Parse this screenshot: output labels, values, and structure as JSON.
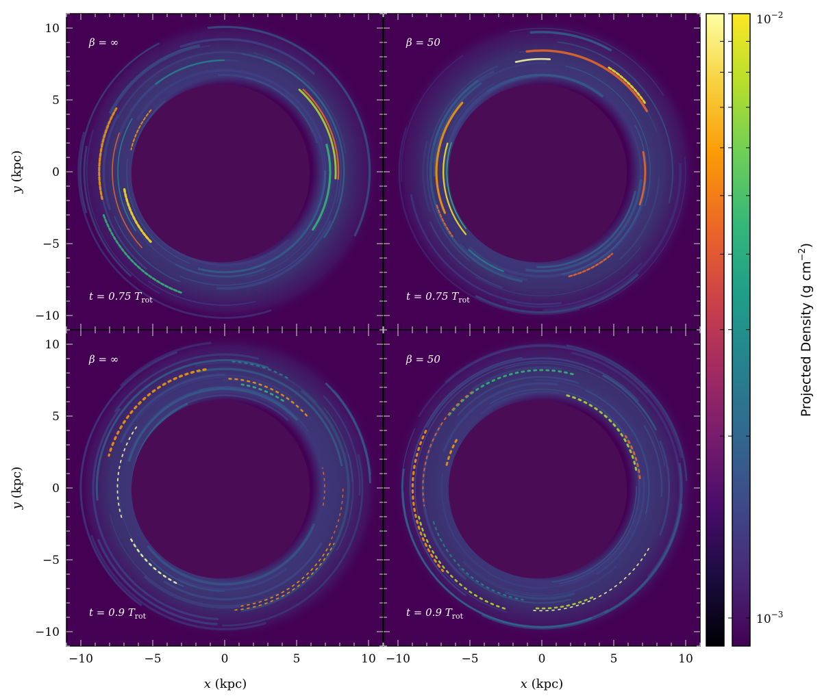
{
  "figure": {
    "colors": {
      "background": "#440154",
      "hole": "#4a0c55",
      "frame": "#000000",
      "tick": "#bbbbbb"
    }
  },
  "panels": [
    {
      "id": "top-left",
      "beta": "β = ∞",
      "time": "t = 0.75 T",
      "time_sub": "rot"
    },
    {
      "id": "top-right",
      "beta": "β = 50",
      "time": "t = 0.75 T",
      "time_sub": "rot"
    },
    {
      "id": "bottom-left",
      "beta": "β = ∞",
      "time": "t = 0.9 T",
      "time_sub": "rot"
    },
    {
      "id": "bottom-right",
      "beta": "β = 50",
      "time": "t = 0.9 T",
      "time_sub": "rot"
    }
  ],
  "colorbar": {
    "title": "Projected Density (g cm",
    "title_sup": "−2",
    "title_close": ")",
    "top_label": "10",
    "top_label_sup": "−2",
    "bottom_label": "10",
    "bottom_label_sup": "−3",
    "inferno_stops": [
      "#000004",
      "#1b0c41",
      "#4a0c6b",
      "#781c6d",
      "#a52c60",
      "#cf4446",
      "#ed6925",
      "#fb9b06",
      "#f7d13d",
      "#fcffa4"
    ],
    "viridis_stops": [
      "#440154",
      "#482878",
      "#3e4989",
      "#31688e",
      "#26828e",
      "#1f9e89",
      "#35b779",
      "#6ece58",
      "#b5de2b",
      "#fde725"
    ]
  },
  "chart_data": {
    "type": "heatmap",
    "description_quantity": "projected gas density",
    "xlabel": "x (kpc)",
    "xlabel_var": "x",
    "xlabel_unit": " (kpc)",
    "ylabel": "y (kpc)",
    "ylabel_var": "y",
    "ylabel_unit": " (kpc)",
    "xlim": [
      -11,
      11
    ],
    "ylim": [
      -11,
      11
    ],
    "xticks": [
      -10,
      -5,
      0,
      5,
      10
    ],
    "xtick_labels": [
      "−10",
      "−5",
      "0",
      "5",
      "10"
    ],
    "yticks": [
      -10,
      -5,
      0,
      5,
      10
    ],
    "ytick_labels": [
      "−10",
      "−5",
      "0",
      "5",
      "10"
    ],
    "inner_hole_radius_kpc": 6.2,
    "ring_outer_radius_kpc": 10,
    "colorbar_range": [
      "10^-3",
      "10^-2"
    ],
    "colorbar_scale": "log"
  }
}
